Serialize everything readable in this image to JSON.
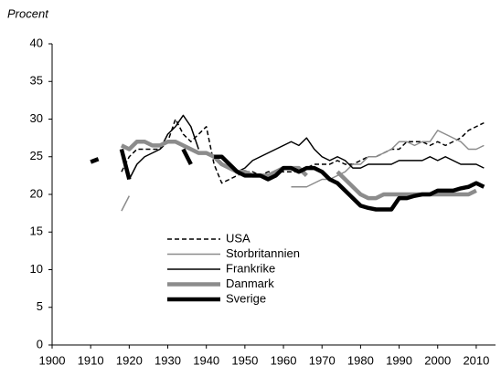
{
  "chart_data": {
    "type": "line",
    "y_label": "Procent",
    "x": [
      1910,
      1912,
      1914,
      1916,
      1918,
      1920,
      1922,
      1924,
      1926,
      1928,
      1930,
      1932,
      1934,
      1936,
      1938,
      1940,
      1942,
      1944,
      1946,
      1948,
      1950,
      1952,
      1954,
      1956,
      1958,
      1960,
      1962,
      1964,
      1966,
      1968,
      1970,
      1972,
      1974,
      1976,
      1978,
      1980,
      1982,
      1984,
      1986,
      1988,
      1990,
      1992,
      1994,
      1996,
      1998,
      2000,
      2002,
      2004,
      2006,
      2008,
      2010,
      2012
    ],
    "series": [
      {
        "name": "USA",
        "color": "#000000",
        "width": 1.5,
        "dash": true,
        "values": [
          null,
          null,
          null,
          null,
          23,
          25,
          26,
          26,
          26,
          26,
          27,
          30,
          28,
          27,
          28,
          29,
          24,
          21.5,
          22,
          22.5,
          23,
          23,
          22.5,
          23,
          23,
          23,
          23,
          23,
          23.5,
          24,
          24,
          24,
          24.5,
          24,
          24,
          24.5,
          25,
          25,
          25.5,
          26,
          26,
          27,
          27,
          27,
          26.5,
          27,
          26.5,
          27,
          27.5,
          28.5,
          29,
          29.5
        ]
      },
      {
        "name": "Storbritannien",
        "color": "#8c8c8c",
        "width": 1.5,
        "dash": false,
        "values": [
          null,
          null,
          null,
          null,
          17.8,
          19.8,
          null,
          null,
          null,
          null,
          null,
          null,
          null,
          null,
          null,
          null,
          null,
          null,
          null,
          null,
          null,
          null,
          null,
          null,
          null,
          null,
          21,
          21,
          21,
          21.5,
          22,
          22,
          22.5,
          23,
          24,
          24,
          25,
          25,
          25.5,
          26,
          27,
          27,
          26.5,
          27,
          27,
          28.5,
          28,
          27.5,
          27,
          26,
          26,
          26.5
        ]
      },
      {
        "name": "Frankrike",
        "color": "#000000",
        "width": 1.5,
        "dash": false,
        "values": [
          null,
          null,
          null,
          null,
          null,
          22,
          24,
          25,
          25.5,
          26,
          28,
          29,
          30.5,
          29,
          26,
          null,
          null,
          null,
          null,
          23,
          23.5,
          24.5,
          25,
          25.5,
          26,
          26.5,
          27,
          26.5,
          27.5,
          26,
          25,
          24.5,
          25,
          24.5,
          23.5,
          23.5,
          24,
          24,
          24,
          24,
          24.5,
          24.5,
          24.5,
          24.5,
          25,
          24.5,
          25,
          24.5,
          24,
          24,
          24,
          23.5
        ]
      },
      {
        "name": "Danmark",
        "color": "#8c8c8c",
        "width": 4.5,
        "dash": false,
        "values": [
          null,
          null,
          null,
          null,
          26.5,
          26,
          27,
          27,
          26.5,
          26.5,
          27,
          27,
          26.5,
          26,
          25.5,
          25.5,
          25,
          24,
          23.5,
          23,
          23,
          22.5,
          22.5,
          22.5,
          23,
          23.5,
          23.5,
          23.5,
          22.5,
          null,
          null,
          null,
          23,
          22,
          21,
          20,
          19.5,
          19.5,
          20,
          20,
          20,
          20,
          20,
          20,
          20,
          20,
          20,
          20,
          20,
          20,
          20.5,
          null
        ]
      },
      {
        "name": "Sverige",
        "color": "#000000",
        "width": 4.5,
        "dash": false,
        "values": [
          24.3,
          24.7,
          null,
          null,
          26,
          22,
          null,
          null,
          null,
          null,
          null,
          null,
          26,
          24,
          null,
          null,
          25,
          25,
          24,
          23,
          22.5,
          22.5,
          22.5,
          22,
          22.5,
          23.5,
          23.5,
          23,
          23.5,
          23.5,
          23,
          22,
          21.5,
          20.5,
          19.5,
          18.5,
          18.2,
          18,
          18,
          18,
          19.5,
          19.5,
          19.8,
          20,
          20,
          20.5,
          20.5,
          20.5,
          20.8,
          21,
          21.5,
          21
        ]
      }
    ],
    "xlim": [
      1900,
      2015
    ],
    "xticks": [
      1900,
      1910,
      1920,
      1930,
      1940,
      1950,
      1960,
      1970,
      1980,
      1990,
      2000,
      2010
    ],
    "ylim": [
      0,
      40
    ],
    "yticks": [
      0,
      5,
      10,
      15,
      20,
      25,
      30,
      35,
      40
    ],
    "grid": false,
    "legend": "lower-left"
  }
}
